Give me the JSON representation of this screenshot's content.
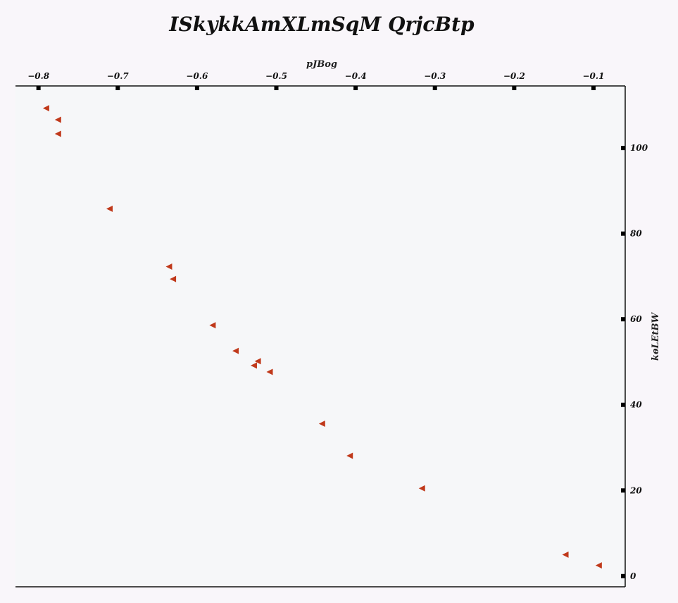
{
  "chart_data": {
    "type": "scatter",
    "title": "ISkykkAmXLmSqM QrjcBtp",
    "xlabel": "pJBog",
    "ylabel": "kѳLEtBW",
    "xaxis_position": "top",
    "yaxis_position": "right",
    "xlim": [
      -0.829,
      -0.06
    ],
    "ylim": [
      -2.5,
      114.5
    ],
    "xticks": [
      -0.8,
      -0.7,
      -0.6,
      -0.5,
      -0.4,
      -0.3,
      -0.2,
      -0.1
    ],
    "xtick_labels": [
      "−0.8",
      "−0.7",
      "−0.6",
      "−0.5",
      "−0.4",
      "−0.3",
      "−0.2",
      "−0.1"
    ],
    "yticks": [
      0,
      20,
      40,
      60,
      80,
      100
    ],
    "ytick_labels": [
      "0",
      "20",
      "40",
      "60",
      "80",
      "100"
    ],
    "grid": false,
    "marker": "triangle-left",
    "marker_color": "#c0391b",
    "plot_background": "#f6f7f9",
    "series": [
      {
        "points": [
          {
            "x": -0.79,
            "y": 109.3
          },
          {
            "x": -0.775,
            "y": 106.6
          },
          {
            "x": -0.775,
            "y": 103.3
          },
          {
            "x": -0.71,
            "y": 85.8
          },
          {
            "x": -0.635,
            "y": 72.3
          },
          {
            "x": -0.63,
            "y": 69.4
          },
          {
            "x": -0.58,
            "y": 58.6
          },
          {
            "x": -0.551,
            "y": 52.6
          },
          {
            "x": -0.523,
            "y": 50.2
          },
          {
            "x": -0.528,
            "y": 49.2
          },
          {
            "x": -0.508,
            "y": 47.7
          },
          {
            "x": -0.442,
            "y": 35.6
          },
          {
            "x": -0.407,
            "y": 28.1
          },
          {
            "x": -0.316,
            "y": 20.5
          },
          {
            "x": -0.135,
            "y": 5.0
          },
          {
            "x": -0.093,
            "y": 2.5
          }
        ]
      }
    ]
  }
}
